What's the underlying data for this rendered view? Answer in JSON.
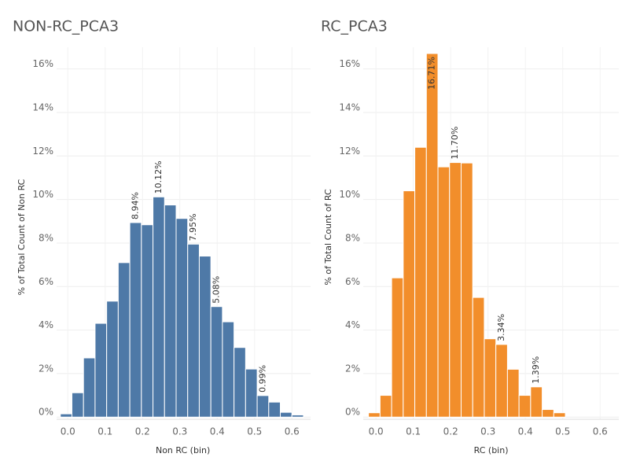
{
  "chart_data": [
    {
      "type": "histogram",
      "title": "NON-RC_PCA3",
      "x_label": "Non RC (bin)",
      "y_label": "% of Total Count of Non RC",
      "color": "#4e79a7",
      "bins": [
        -0.02,
        0.011,
        0.042,
        0.073,
        0.104,
        0.135,
        0.166,
        0.197,
        0.228,
        0.259,
        0.29,
        0.321,
        0.352,
        0.383,
        0.414,
        0.445,
        0.476,
        0.507,
        0.538,
        0.569,
        0.6,
        0.631
      ],
      "values": [
        0.15,
        1.12,
        2.72,
        4.31,
        5.33,
        7.1,
        8.94,
        8.84,
        10.12,
        9.75,
        9.13,
        7.95,
        7.4,
        5.08,
        4.38,
        3.2,
        2.21,
        0.99,
        0.69,
        0.22,
        0.1
      ],
      "value_labels": [
        null,
        null,
        null,
        null,
        null,
        null,
        "8.94%",
        null,
        "10.12%",
        null,
        null,
        "7.95%",
        null,
        "5.08%",
        null,
        null,
        null,
        "0.99%",
        null,
        null,
        null
      ],
      "xlim": [
        -0.03,
        0.65
      ],
      "xticks": [
        {
          "value": 0,
          "label": "0.0"
        },
        0.1,
        0.2,
        0.3,
        0.4,
        0.5,
        0.6
      ],
      "ylim": [
        -0.1,
        17
      ],
      "yticks": [
        {
          "value": 0,
          "label": "0%"
        },
        {
          "value": 2,
          "label": "2%"
        },
        {
          "value": 4,
          "label": "4%"
        },
        {
          "value": 6,
          "label": "6%"
        },
        {
          "value": 8,
          "label": "8%"
        },
        {
          "value": 10,
          "label": "10%"
        },
        {
          "value": 12,
          "label": "12%"
        },
        {
          "value": 14,
          "label": "14%"
        },
        {
          "value": 16,
          "label": "16%"
        }
      ],
      "grid": true
    },
    {
      "type": "histogram",
      "title": "RC_PCA3",
      "x_label": "RC (bin)",
      "y_label": "% of Total Count of RC",
      "color": "#f28e2b",
      "bins": [
        -0.02,
        0.011,
        0.042,
        0.073,
        0.104,
        0.135,
        0.166,
        0.197,
        0.228,
        0.259,
        0.29,
        0.321,
        0.352,
        0.383,
        0.414,
        0.445,
        0.476,
        0.507
      ],
      "values": [
        0.2,
        1.0,
        6.4,
        10.4,
        12.4,
        16.71,
        11.5,
        11.7,
        11.68,
        5.5,
        3.6,
        3.34,
        2.2,
        1.0,
        1.39,
        0.35,
        0.2
      ],
      "value_labels": [
        null,
        null,
        null,
        null,
        null,
        "16.71%",
        null,
        "11.70%",
        null,
        null,
        null,
        "3.34%",
        null,
        null,
        "1.39%",
        null,
        null
      ],
      "xlim": [
        -0.034,
        0.65
      ],
      "xticks": [
        {
          "value": 0,
          "label": "0.0"
        },
        0.1,
        0.2,
        0.3,
        0.4,
        0.5,
        0.6
      ],
      "ylim": [
        -0.1,
        17
      ],
      "yticks": [
        {
          "value": 0,
          "label": "0%"
        },
        {
          "value": 2,
          "label": "2%"
        },
        {
          "value": 4,
          "label": "4%"
        },
        {
          "value": 6,
          "label": "6%"
        },
        {
          "value": 8,
          "label": "8%"
        },
        {
          "value": 10,
          "label": "10%"
        },
        {
          "value": 12,
          "label": "12%"
        },
        {
          "value": 14,
          "label": "14%"
        },
        {
          "value": 16,
          "label": "16%"
        }
      ],
      "grid": true
    }
  ]
}
